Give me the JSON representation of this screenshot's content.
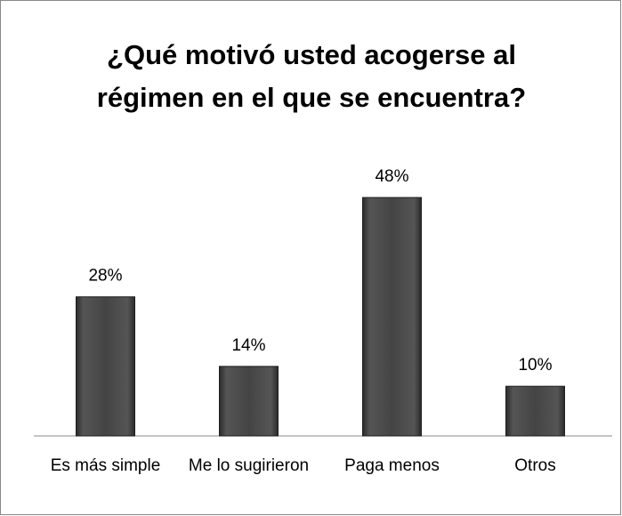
{
  "chart_data": {
    "type": "bar",
    "title": "¿Qué motivó usted acogerse al régimen en el que se encuentra?",
    "categories": [
      "Es más simple",
      "Me lo sugirieron",
      "Paga menos",
      "Otros"
    ],
    "values": [
      28,
      14,
      48,
      10
    ],
    "value_labels": [
      "28%",
      "14%",
      "48%",
      "10%"
    ],
    "color": "#3c3c3c"
  }
}
